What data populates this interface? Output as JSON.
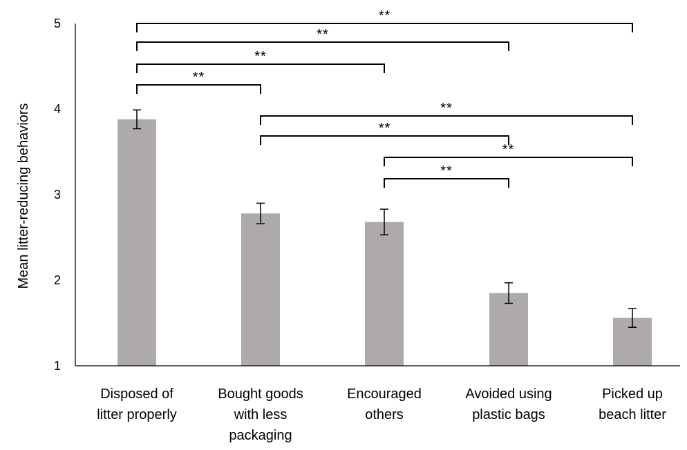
{
  "chart_data": {
    "type": "bar",
    "title": "",
    "xlabel": "",
    "ylabel": "Mean litter-reducing behaviors",
    "ylim": [
      1,
      5
    ],
    "yticks": [
      "1",
      "2",
      "3",
      "4",
      "5"
    ],
    "grid": false,
    "categories": [
      [
        "Disposed of",
        "litter properly"
      ],
      [
        "Bought goods",
        "with less",
        "packaging"
      ],
      [
        "Encouraged",
        "others"
      ],
      [
        "Avoided using",
        "plastic bags"
      ],
      [
        "Picked up",
        "beach litter"
      ]
    ],
    "values": [
      3.88,
      2.78,
      2.68,
      1.85,
      1.56
    ],
    "error": [
      0.11,
      0.12,
      0.15,
      0.12,
      0.11
    ],
    "bar_color": "#aeaaaa",
    "significance": [
      {
        "from": 0,
        "to": 4,
        "label": "**"
      },
      {
        "from": 0,
        "to": 3,
        "label": "**"
      },
      {
        "from": 0,
        "to": 2,
        "label": "**"
      },
      {
        "from": 0,
        "to": 1,
        "label": "**"
      },
      {
        "from": 1,
        "to": 4,
        "label": "**"
      },
      {
        "from": 1,
        "to": 3,
        "label": "**"
      },
      {
        "from": 2,
        "to": 4,
        "label": "**"
      },
      {
        "from": 2,
        "to": 3,
        "label": "**"
      }
    ]
  }
}
